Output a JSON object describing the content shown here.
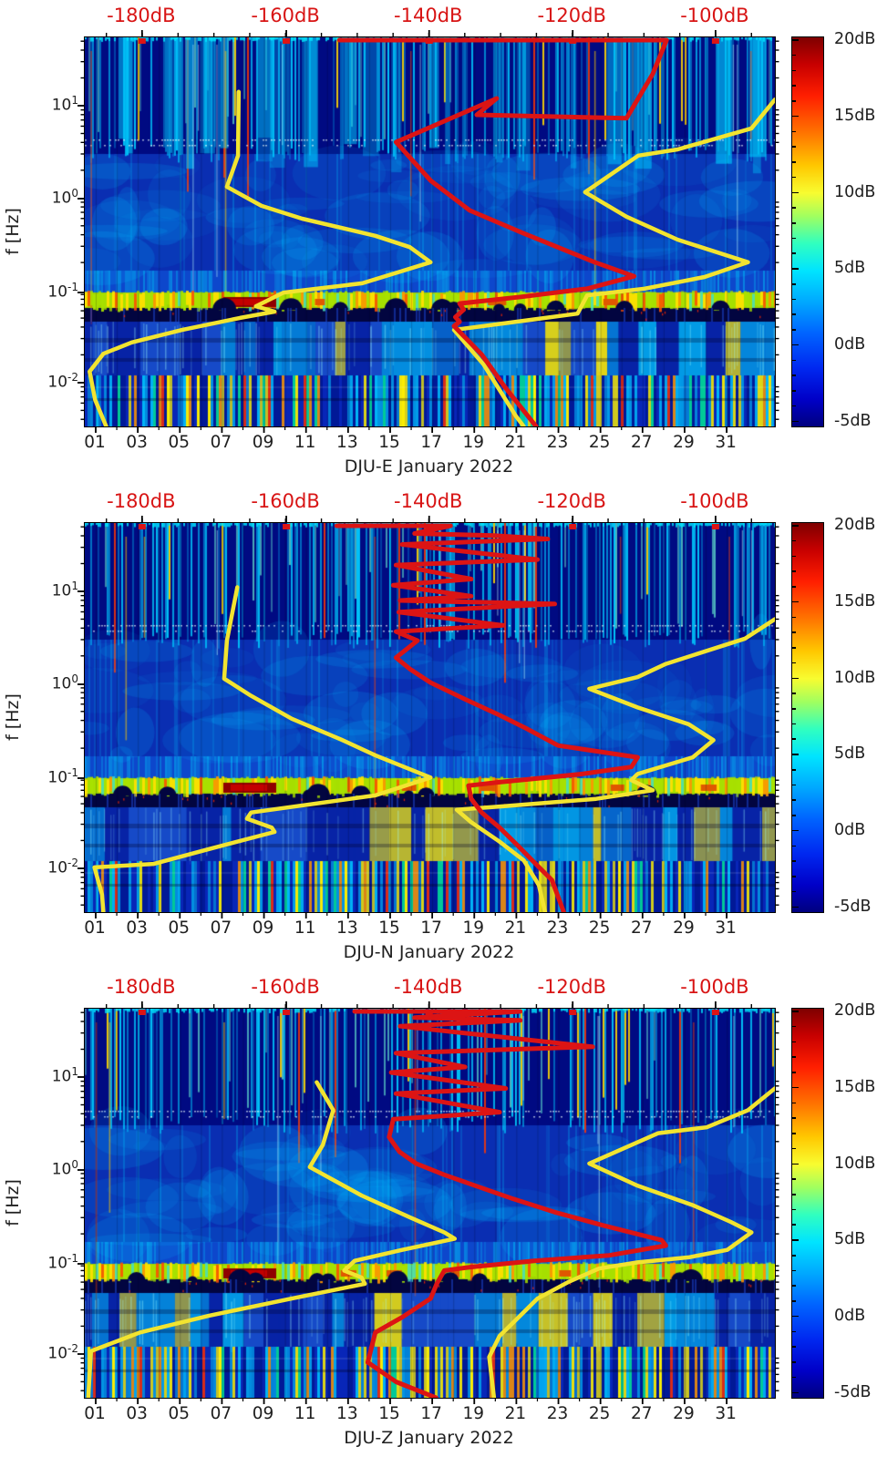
{
  "figure_description": "Three stacked seismic spectrogram panels (jet colormap power heatmaps vs day-of-month and log frequency) with red/yellow statistic curves referenced to a red top dB axis, each with a dB colorbar",
  "chart_data": {
    "type": "heatmap",
    "panels": [
      {
        "station_channel": "DJU-E",
        "title": "DJU-E January 2022",
        "top_axis_labels": [
          "-180dB",
          "-160dB",
          "-140dB",
          "-120dB",
          "-100dB"
        ],
        "curves": {
          "yellow_low": [
            [
              0.223,
              0.14
            ],
            [
              0.222,
              0.304
            ],
            [
              0.206,
              0.384
            ],
            [
              0.256,
              0.433
            ],
            [
              0.315,
              0.466
            ],
            [
              0.421,
              0.51
            ],
            [
              0.471,
              0.539
            ],
            [
              0.501,
              0.578
            ],
            [
              0.457,
              0.602
            ],
            [
              0.402,
              0.632
            ],
            [
              0.288,
              0.656
            ],
            [
              0.248,
              0.691
            ],
            [
              0.275,
              0.705
            ],
            [
              0.225,
              0.721
            ],
            [
              0.141,
              0.752
            ],
            [
              0.068,
              0.784
            ],
            [
              0.027,
              0.813
            ],
            [
              0.007,
              0.859
            ],
            [
              0.015,
              0.932
            ],
            [
              0.031,
              1.0
            ]
          ],
          "yellow_high": [
            [
              1.0,
              0.16
            ],
            [
              0.966,
              0.234
            ],
            [
              0.859,
              0.288
            ],
            [
              0.802,
              0.304
            ],
            [
              0.725,
              0.398
            ],
            [
              0.785,
              0.461
            ],
            [
              0.859,
              0.52
            ],
            [
              0.961,
              0.578
            ],
            [
              0.898,
              0.616
            ],
            [
              0.811,
              0.646
            ],
            [
              0.728,
              0.663
            ],
            [
              0.714,
              0.71
            ],
            [
              0.625,
              0.731
            ],
            [
              0.535,
              0.752
            ],
            [
              0.578,
              0.841
            ],
            [
              0.625,
              0.974
            ],
            [
              0.636,
              1.0
            ]
          ],
          "red_mode": [
            [
              0.369,
              0.007
            ],
            [
              0.843,
              0.007
            ],
            [
              0.823,
              0.094
            ],
            [
              0.785,
              0.208
            ],
            [
              0.568,
              0.199
            ],
            [
              0.597,
              0.157
            ],
            [
              0.451,
              0.269
            ],
            [
              0.501,
              0.368
            ],
            [
              0.558,
              0.445
            ],
            [
              0.635,
              0.503
            ],
            [
              0.739,
              0.578
            ],
            [
              0.796,
              0.614
            ],
            [
              0.728,
              0.646
            ],
            [
              0.632,
              0.667
            ],
            [
              0.543,
              0.684
            ],
            [
              0.549,
              0.7
            ],
            [
              0.537,
              0.719
            ],
            [
              0.543,
              0.731
            ],
            [
              0.535,
              0.742
            ],
            [
              0.575,
              0.815
            ],
            [
              0.609,
              0.899
            ],
            [
              0.654,
              1.0
            ]
          ]
        }
      },
      {
        "station_channel": "DJU-N",
        "title": "DJU-N January 2022",
        "top_axis_labels": [
          "-180dB",
          "-160dB",
          "-140dB",
          "-120dB",
          "-100dB"
        ],
        "curves": {
          "yellow_low": [
            [
              0.221,
              0.165
            ],
            [
              0.206,
              0.302
            ],
            [
              0.202,
              0.4
            ],
            [
              0.241,
              0.444
            ],
            [
              0.3,
              0.503
            ],
            [
              0.371,
              0.556
            ],
            [
              0.421,
              0.597
            ],
            [
              0.501,
              0.654
            ],
            [
              0.421,
              0.7
            ],
            [
              0.241,
              0.744
            ],
            [
              0.235,
              0.76
            ],
            [
              0.271,
              0.783
            ],
            [
              0.275,
              0.794
            ],
            [
              0.18,
              0.838
            ],
            [
              0.1,
              0.876
            ],
            [
              0.014,
              0.885
            ],
            [
              0.025,
              0.955
            ],
            [
              0.027,
              1.0
            ]
          ],
          "yellow_high": [
            [
              1.0,
              0.247
            ],
            [
              0.957,
              0.297
            ],
            [
              0.842,
              0.362
            ],
            [
              0.801,
              0.396
            ],
            [
              0.731,
              0.426
            ],
            [
              0.801,
              0.474
            ],
            [
              0.875,
              0.517
            ],
            [
              0.911,
              0.558
            ],
            [
              0.881,
              0.602
            ],
            [
              0.801,
              0.645
            ],
            [
              0.792,
              0.661
            ],
            [
              0.823,
              0.687
            ],
            [
              0.741,
              0.709
            ],
            [
              0.606,
              0.728
            ],
            [
              0.539,
              0.737
            ],
            [
              0.56,
              0.769
            ],
            [
              0.601,
              0.819
            ],
            [
              0.636,
              0.867
            ],
            [
              0.658,
              0.931
            ],
            [
              0.667,
              1.0
            ]
          ],
          "red_mode": [
            [
              0.365,
              0.007
            ],
            [
              0.53,
              0.007
            ],
            [
              0.478,
              0.027
            ],
            [
              0.593,
              0.032
            ],
            [
              0.671,
              0.041
            ],
            [
              0.46,
              0.055
            ],
            [
              0.656,
              0.094
            ],
            [
              0.451,
              0.108
            ],
            [
              0.56,
              0.144
            ],
            [
              0.447,
              0.16
            ],
            [
              0.56,
              0.188
            ],
            [
              0.457,
              0.199
            ],
            [
              0.681,
              0.208
            ],
            [
              0.455,
              0.229
            ],
            [
              0.606,
              0.263
            ],
            [
              0.451,
              0.279
            ],
            [
              0.482,
              0.302
            ],
            [
              0.451,
              0.346
            ],
            [
              0.471,
              0.375
            ],
            [
              0.501,
              0.41
            ],
            [
              0.551,
              0.453
            ],
            [
              0.601,
              0.494
            ],
            [
              0.641,
              0.529
            ],
            [
              0.686,
              0.572
            ],
            [
              0.801,
              0.602
            ],
            [
              0.792,
              0.627
            ],
            [
              0.721,
              0.645
            ],
            [
              0.601,
              0.666
            ],
            [
              0.556,
              0.675
            ],
            [
              0.56,
              0.709
            ],
            [
              0.575,
              0.744
            ],
            [
              0.601,
              0.783
            ],
            [
              0.627,
              0.828
            ],
            [
              0.651,
              0.872
            ],
            [
              0.677,
              0.918
            ],
            [
              0.694,
              1.0
            ]
          ]
        }
      },
      {
        "station_channel": "DJU-Z",
        "title": "DJU-Z January 2022",
        "top_axis_labels": [
          "-180dB",
          "-160dB",
          "-140dB",
          "-120dB",
          "-100dB"
        ],
        "curves": {
          "yellow_low": [
            [
              0.336,
              0.189
            ],
            [
              0.36,
              0.261
            ],
            [
              0.345,
              0.35
            ],
            [
              0.326,
              0.407
            ],
            [
              0.401,
              0.48
            ],
            [
              0.471,
              0.536
            ],
            [
              0.521,
              0.575
            ],
            [
              0.536,
              0.591
            ],
            [
              0.46,
              0.62
            ],
            [
              0.391,
              0.648
            ],
            [
              0.376,
              0.673
            ],
            [
              0.401,
              0.691
            ],
            [
              0.406,
              0.707
            ],
            [
              0.3,
              0.745
            ],
            [
              0.18,
              0.789
            ],
            [
              0.08,
              0.832
            ],
            [
              0.009,
              0.88
            ],
            [
              0.005,
              1.0
            ]
          ],
          "yellow_high": [
            [
              1.0,
              0.205
            ],
            [
              0.961,
              0.261
            ],
            [
              0.901,
              0.305
            ],
            [
              0.831,
              0.32
            ],
            [
              0.731,
              0.398
            ],
            [
              0.801,
              0.455
            ],
            [
              0.881,
              0.505
            ],
            [
              0.936,
              0.548
            ],
            [
              0.966,
              0.575
            ],
            [
              0.931,
              0.62
            ],
            [
              0.875,
              0.639
            ],
            [
              0.801,
              0.652
            ],
            [
              0.745,
              0.668
            ],
            [
              0.701,
              0.702
            ],
            [
              0.656,
              0.745
            ],
            [
              0.631,
              0.789
            ],
            [
              0.601,
              0.841
            ],
            [
              0.586,
              0.895
            ],
            [
              0.593,
              1.0
            ]
          ],
          "red_mode": [
            [
              0.391,
              0.007
            ],
            [
              0.631,
              0.007
            ],
            [
              0.478,
              0.023
            ],
            [
              0.631,
              0.03
            ],
            [
              0.457,
              0.045
            ],
            [
              0.736,
              0.098
            ],
            [
              0.451,
              0.114
            ],
            [
              0.551,
              0.15
            ],
            [
              0.444,
              0.164
            ],
            [
              0.61,
              0.205
            ],
            [
              0.451,
              0.218
            ],
            [
              0.601,
              0.266
            ],
            [
              0.447,
              0.284
            ],
            [
              0.441,
              0.33
            ],
            [
              0.456,
              0.368
            ],
            [
              0.48,
              0.398
            ],
            [
              0.521,
              0.427
            ],
            [
              0.566,
              0.455
            ],
            [
              0.621,
              0.489
            ],
            [
              0.681,
              0.523
            ],
            [
              0.751,
              0.557
            ],
            [
              0.836,
              0.595
            ],
            [
              0.842,
              0.609
            ],
            [
              0.76,
              0.634
            ],
            [
              0.651,
              0.648
            ],
            [
              0.56,
              0.664
            ],
            [
              0.521,
              0.673
            ],
            [
              0.51,
              0.707
            ],
            [
              0.501,
              0.745
            ],
            [
              0.46,
              0.793
            ],
            [
              0.421,
              0.832
            ],
            [
              0.41,
              0.909
            ],
            [
              0.451,
              0.959
            ],
            [
              0.509,
              1.0
            ]
          ]
        }
      }
    ],
    "x_axis": {
      "tick_labels": [
        "01",
        "03",
        "05",
        "07",
        "09",
        "11",
        "13",
        "15",
        "17",
        "19",
        "21",
        "23",
        "25",
        "27",
        "29",
        "31"
      ],
      "month_label": "January 2022"
    },
    "y_axis": {
      "label": "f [Hz]",
      "scale": "log",
      "ticks": [
        {
          "mant": "10",
          "exp": "1"
        },
        {
          "mant": "10",
          "exp": "0"
        },
        {
          "mant": "10",
          "exp": "-1"
        },
        {
          "mant": "10",
          "exp": "-2"
        }
      ]
    },
    "top_axis": {
      "tick_values_dB": [
        -180,
        -160,
        -140,
        -120,
        -100
      ],
      "label_color": "#d81414"
    },
    "colorbar": {
      "tick_labels": [
        "20dB",
        "15dB",
        "10dB",
        "5dB",
        "0dB",
        "-5dB"
      ],
      "max_label": "20dB",
      "min_label": "-5dB"
    },
    "overlay_curve_colors": {
      "yellow": "#f2e430",
      "red": "#dc1414"
    },
    "curve_coords_note": "curve points are [x,y] fractions of each panel plot area; top axis maps -180dB..-100dB to x-fractions 0.083..0.914; y maps log frequency, 10^1 Hz at fraction 0.176 down to 10^-2 Hz at 0.888"
  }
}
